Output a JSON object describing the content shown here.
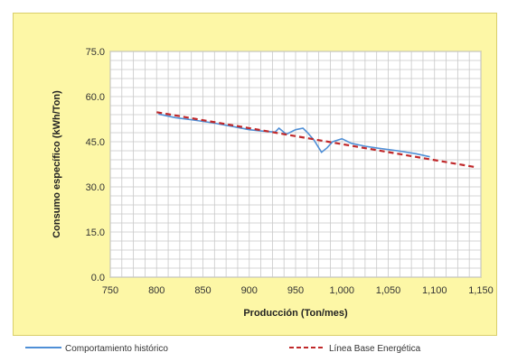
{
  "chart_data": {
    "type": "line",
    "xlabel": "Producción (Ton/mes)",
    "ylabel": "Consumo específico (kWh/Ton)",
    "xlim": [
      750,
      1150
    ],
    "ylim": [
      0,
      75
    ],
    "x_ticks": [
      "750",
      "800",
      "850",
      "900",
      "950",
      "1,000",
      "1,050",
      "1,100",
      "1,150"
    ],
    "x_tick_values": [
      750,
      800,
      850,
      900,
      950,
      1000,
      1050,
      1100,
      1150
    ],
    "y_ticks": [
      "0.0",
      "15.0",
      "30.0",
      "45.0",
      "60.0",
      "75.0"
    ],
    "y_tick_values": [
      0,
      15,
      30,
      45,
      60,
      75
    ],
    "grid": true,
    "legend_position": "bottom",
    "series": [
      {
        "name": "Comportamiento histórico",
        "color": "#4f8fd6",
        "style": "solid",
        "x": [
          802,
          820,
          840,
          860,
          880,
          900,
          915,
          928,
          932,
          940,
          950,
          958,
          963,
          970,
          978,
          984,
          990,
          1000,
          1010,
          1025,
          1040,
          1060,
          1080,
          1095
        ],
        "y": [
          54.2,
          53.0,
          52.2,
          51.3,
          50.2,
          49.0,
          48.5,
          48.2,
          49.5,
          47.5,
          49.0,
          49.5,
          48.0,
          45.5,
          41.5,
          43.0,
          45.0,
          46.0,
          44.5,
          43.5,
          42.8,
          42.0,
          41.0,
          40.0
        ]
      },
      {
        "name": "Línea Base Energética",
        "color": "#c0282a",
        "style": "dashed",
        "x": [
          800,
          1145
        ],
        "y": [
          54.8,
          36.5
        ]
      }
    ]
  }
}
